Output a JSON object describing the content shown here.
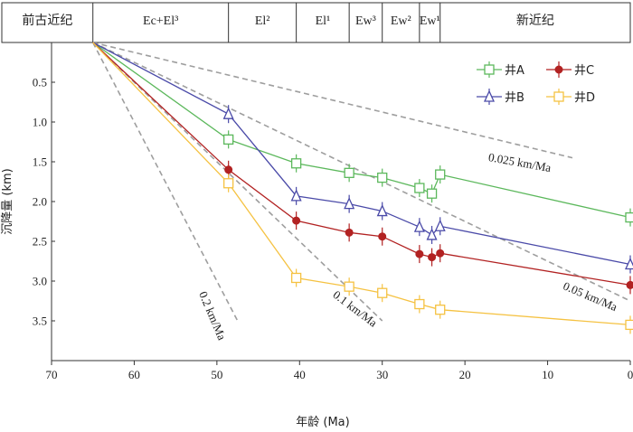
{
  "chart_data": {
    "type": "line",
    "xlabel": "年龄 (Ma)",
    "ylabel": "沉降量 (km)",
    "xlim": [
      70,
      0
    ],
    "ylim": [
      0,
      4
    ],
    "x_ticks": [
      70,
      60,
      50,
      40,
      30,
      20,
      10,
      0
    ],
    "y_ticks": [
      0.5,
      1.0,
      1.5,
      2.0,
      2.5,
      3.0,
      3.5
    ],
    "x_tick_labels": [
      "70",
      "60",
      "50",
      "40",
      "30",
      "20",
      "10",
      "0"
    ],
    "y_tick_labels": [
      "0.5",
      "1.0",
      "1.5",
      "2.0",
      "2.5",
      "3.0",
      "3.5"
    ],
    "legend_position": "top-right",
    "strata": [
      {
        "label": "前古近纪",
        "from": 70,
        "to": 65
      },
      {
        "label": "Ec+El³",
        "from": 65,
        "to": 48.6
      },
      {
        "label": "El²",
        "from": 48.6,
        "to": 40.4
      },
      {
        "label": "El¹",
        "from": 40.4,
        "to": 34
      },
      {
        "label": "Ew³",
        "from": 34,
        "to": 30
      },
      {
        "label": "Ew²",
        "from": 30,
        "to": 25.5
      },
      {
        "label": "Ew¹",
        "from": 25.5,
        "to": 23
      },
      {
        "label": "新近纪",
        "from": 23,
        "to": 0
      }
    ],
    "series": [
      {
        "name": "井A",
        "color": "#5cb85c",
        "marker": "square",
        "x": [
          65,
          48.6,
          40.4,
          34,
          30,
          25.5,
          24,
          23,
          0
        ],
        "y": [
          0,
          1.22,
          1.52,
          1.64,
          1.7,
          1.83,
          1.9,
          1.66,
          2.2
        ]
      },
      {
        "name": "井B",
        "color": "#4a4aa8",
        "marker": "triangle",
        "x": [
          65,
          48.6,
          40.4,
          34,
          30,
          25.5,
          24,
          23,
          0
        ],
        "y": [
          0,
          0.9,
          1.93,
          2.03,
          2.12,
          2.32,
          2.42,
          2.31,
          2.79
        ]
      },
      {
        "name": "井C",
        "color": "#b22222",
        "marker": "circle",
        "x": [
          65,
          48.6,
          40.4,
          34,
          30,
          25.5,
          24,
          23,
          0
        ],
        "y": [
          0,
          1.6,
          2.24,
          2.39,
          2.44,
          2.66,
          2.7,
          2.65,
          3.05
        ]
      },
      {
        "name": "井D",
        "color": "#f5c242",
        "marker": "square",
        "x": [
          65,
          48.6,
          40.4,
          34,
          30,
          25.5,
          23,
          0
        ],
        "y": [
          0,
          1.77,
          2.96,
          3.07,
          3.15,
          3.29,
          3.36,
          3.55
        ]
      }
    ],
    "reference_lines": [
      {
        "label": "0.2 km/Ma",
        "color": "#9e9e9e",
        "x": [
          65,
          47.5
        ],
        "y": [
          0,
          3.5
        ]
      },
      {
        "label": "0.1 km/Ma",
        "color": "#9e9e9e",
        "x": [
          65,
          30
        ],
        "y": [
          0,
          3.5
        ]
      },
      {
        "label": "0.05 km/Ma",
        "color": "#9e9e9e",
        "x": [
          65,
          0
        ],
        "y": [
          0,
          3.25
        ]
      },
      {
        "label": "0.025 km/Ma",
        "color": "#9e9e9e",
        "x": [
          65,
          7
        ],
        "y": [
          0,
          1.45
        ]
      }
    ]
  }
}
